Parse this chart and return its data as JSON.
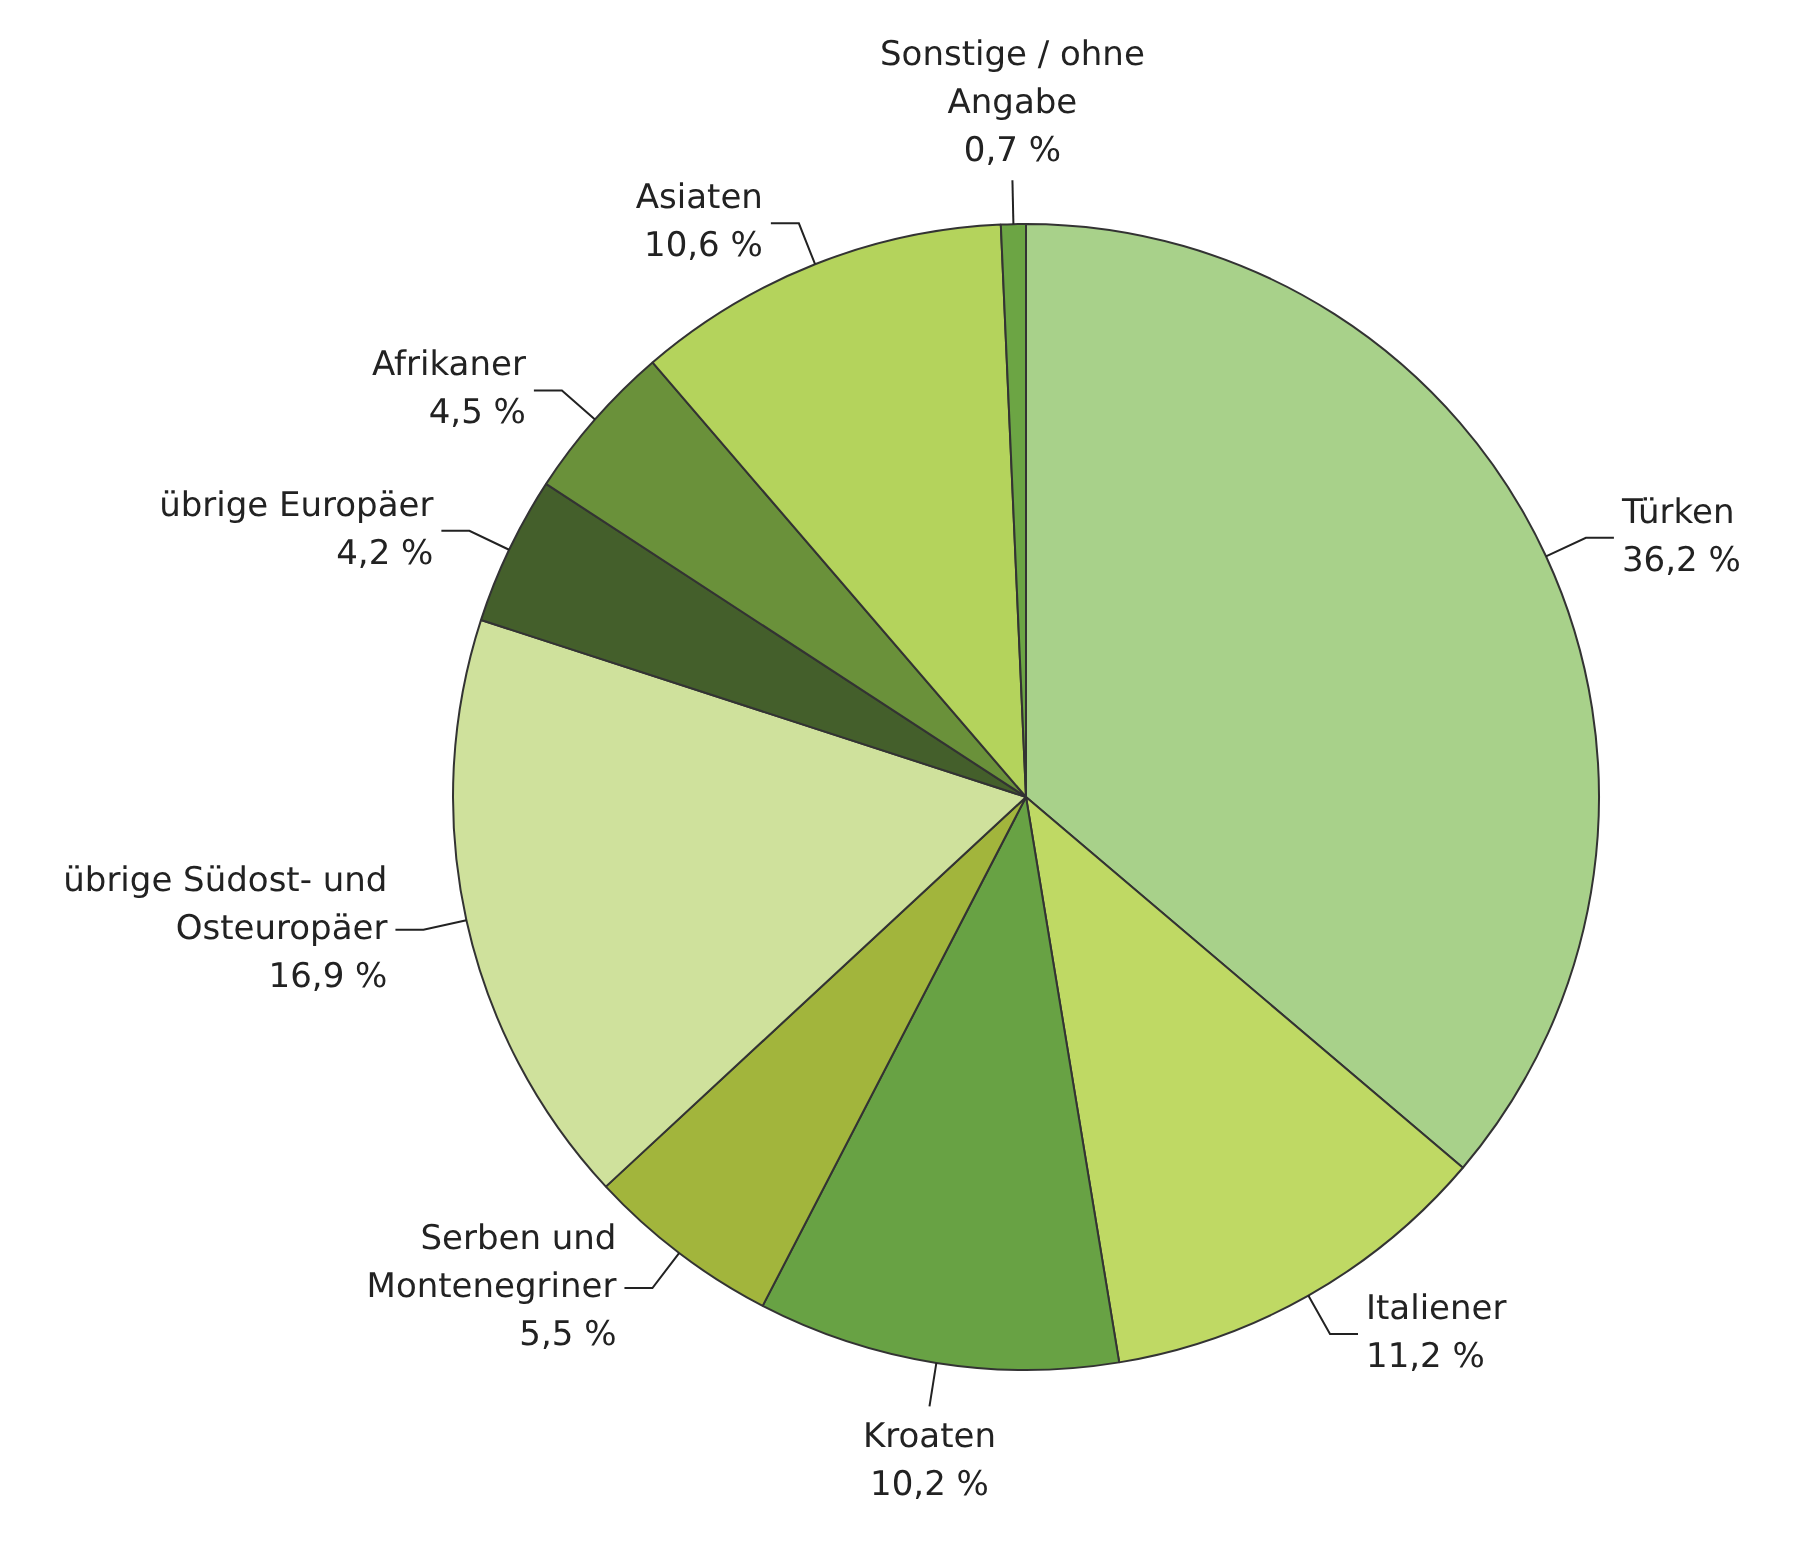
{
  "chart_data": {
    "type": "pie",
    "categories": [
      "Türken",
      "Italiener",
      "Kroaten",
      "Serben und Montenegriner",
      "übrige Südost- und Osteuropäer",
      "übrige Europäer",
      "Afrikaner",
      "Asiaten",
      "Sonstige / ohne Angabe"
    ],
    "values": [
      36.2,
      11.2,
      10.2,
      5.5,
      16.9,
      4.2,
      4.5,
      10.6,
      0.7
    ],
    "value_labels": [
      "36,2 %",
      "11,2 %",
      "10,2 %",
      "5,5 %",
      "16,9 %",
      "4,2 %",
      "4,5 %",
      "10,6 %",
      "0,7 %"
    ],
    "colors": [
      "#a8d18a",
      "#bfd964",
      "#68a244",
      "#a2b53c",
      "#cfe19c",
      "#445f2b",
      "#6a913a",
      "#b4d35c",
      "#6ca544"
    ],
    "legend": false
  }
}
